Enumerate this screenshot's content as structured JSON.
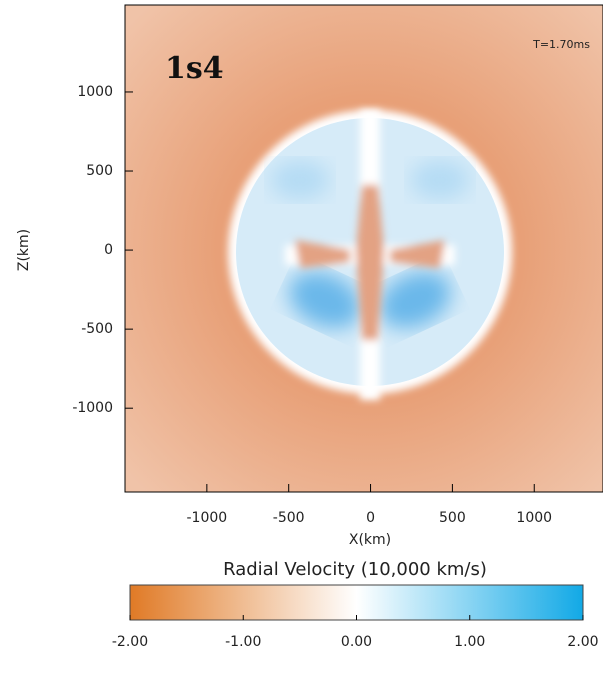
{
  "chart_data": {
    "type": "heatmap",
    "annotations": [
      "1s4",
      "T=1.70ms"
    ],
    "xlabel": "X(km)",
    "ylabel": "Z(km)",
    "xlim": [
      -1500,
      1420
    ],
    "ylim": [
      -1530,
      1550
    ],
    "xticks": [
      -1000,
      -500,
      0,
      500,
      1000
    ],
    "yticks": [
      -1000,
      -500,
      0,
      500,
      1000
    ],
    "colorbar": {
      "label": "Radial Velocity (10,000 km/s)",
      "lim": [
        -2,
        2
      ],
      "ticks": [
        {
          "value": -2,
          "label": "-2.00"
        },
        {
          "value": -1,
          "label": "-1.00"
        },
        {
          "value": 0,
          "label": "0.00"
        },
        {
          "value": 1,
          "label": "1.00"
        },
        {
          "value": 2,
          "label": "2.00"
        }
      ],
      "colors": [
        "#e07a26",
        "#ffffff",
        "#12a9e6"
      ]
    }
  }
}
